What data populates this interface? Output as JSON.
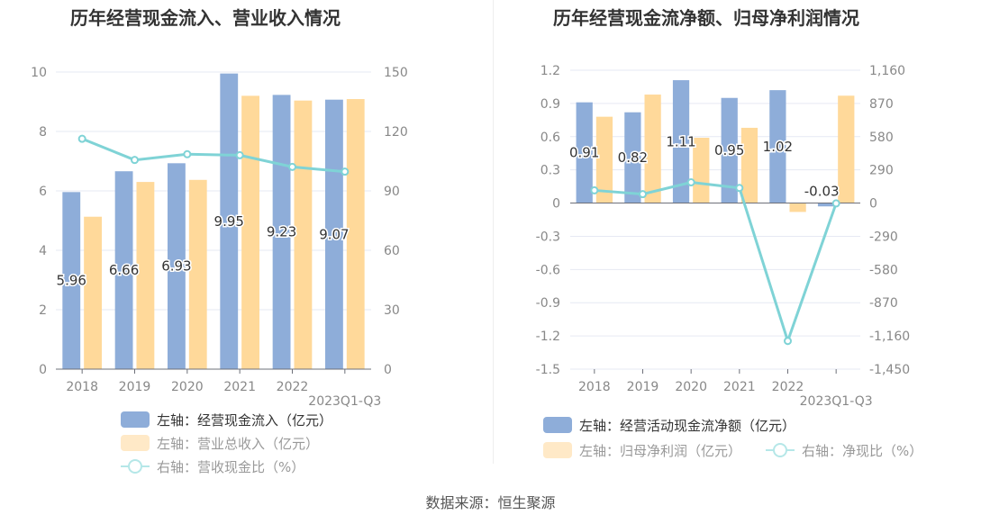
{
  "chart_data": [
    {
      "type": "bar",
      "title": "历年经营现金流入、营业收入情况",
      "categories": [
        "2018",
        "2019",
        "2020",
        "2021",
        "2022",
        "2023Q1-Q3"
      ],
      "left_axis": {
        "min": 0,
        "max": 10,
        "ticks": [
          "0",
          "2",
          "4",
          "6",
          "8",
          "10"
        ]
      },
      "right_axis": {
        "min": 0,
        "max": 150,
        "ticks": [
          "0",
          "30",
          "60",
          "90",
          "120",
          "150"
        ]
      },
      "series": [
        {
          "name": "左轴：经营现金流入（亿元）",
          "kind": "bar",
          "axis": "left",
          "color": "#8eadd9",
          "values": [
            5.96,
            6.66,
            6.93,
            9.95,
            9.23,
            9.07
          ],
          "labels": [
            "5.96",
            "6.66",
            "6.93",
            "9.95",
            "9.23",
            "9.07"
          ]
        },
        {
          "name": "左轴：营业总收入（亿元）",
          "kind": "bar",
          "axis": "left",
          "color": "#ffd99a",
          "values": [
            5.13,
            6.3,
            6.37,
            9.2,
            9.04,
            9.09
          ]
        },
        {
          "name": "右轴：营收现金比（%）",
          "kind": "line",
          "axis": "right",
          "color": "#7fd3d6",
          "values": [
            116.3,
            105.6,
            108.5,
            108,
            102.1,
            99.7
          ]
        }
      ],
      "legend_placement": "bottom"
    },
    {
      "type": "bar",
      "title": "历年经营现金流净额、归母净利润情况",
      "categories": [
        "2018",
        "2019",
        "2020",
        "2021",
        "2022",
        "2023Q1-Q3"
      ],
      "left_axis": {
        "min": -1.5,
        "max": 1.2,
        "ticks": [
          "-1.5",
          "-1.2",
          "-0.9",
          "-0.6",
          "-0.3",
          "0",
          "0.3",
          "0.6",
          "0.9",
          "1.2"
        ]
      },
      "right_axis": {
        "min": -1450,
        "max": 1160,
        "ticks": [
          "-1,450",
          "-1,160",
          "-870",
          "-580",
          "-290",
          "0",
          "290",
          "580",
          "870",
          "1,160"
        ]
      },
      "series": [
        {
          "name": "左轴：经营活动现金流净额（亿元）",
          "kind": "bar",
          "axis": "left",
          "color": "#8eadd9",
          "values": [
            0.91,
            0.82,
            1.11,
            0.95,
            1.02,
            -0.03
          ],
          "labels": [
            "0.91",
            "0.82",
            "1.11",
            "0.95",
            "1.02",
            "-0.03"
          ]
        },
        {
          "name": "左轴：归母净利润（亿元）",
          "kind": "bar",
          "axis": "left",
          "color": "#ffd99a",
          "values": [
            0.78,
            0.98,
            0.59,
            0.68,
            -0.08,
            0.97
          ]
        },
        {
          "name": "右轴：净现比（%）",
          "kind": "line",
          "axis": "right",
          "color": "#7fd3d6",
          "values": [
            111,
            78,
            181,
            132,
            -1204,
            -3
          ]
        }
      ],
      "legend_placement": "bottom"
    }
  ],
  "source": "数据来源：恒生聚源"
}
